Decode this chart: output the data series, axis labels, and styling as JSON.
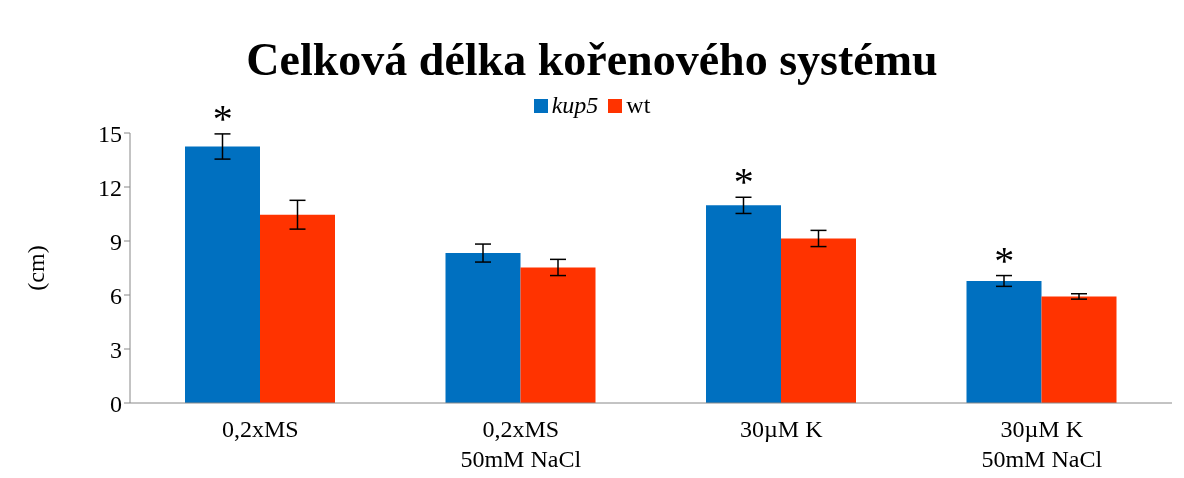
{
  "chart_data": {
    "type": "bar",
    "title": "Celková délka kořenového systému",
    "ylabel": "(cm)",
    "categories": [
      "0,2xMS",
      "0,2xMS\n50mM NaCl",
      "30µM K",
      "30µM K\n50mM NaCl"
    ],
    "series": [
      {
        "name": "kup5",
        "color": "#0070c0",
        "values": [
          14.25,
          8.33,
          10.98,
          6.78
        ],
        "errors": [
          0.7,
          0.5,
          0.45,
          0.3
        ]
      },
      {
        "name": "wt",
        "color": "#ff3300",
        "values": [
          10.46,
          7.53,
          9.14,
          5.92
        ],
        "errors": [
          0.8,
          0.45,
          0.45,
          0.15
        ]
      }
    ],
    "ylim": [
      0,
      15
    ],
    "yticks": [
      0,
      3,
      6,
      9,
      12,
      15
    ],
    "grid": false,
    "legend": "top",
    "annotations": [
      "*",
      "*",
      "*"
    ]
  }
}
